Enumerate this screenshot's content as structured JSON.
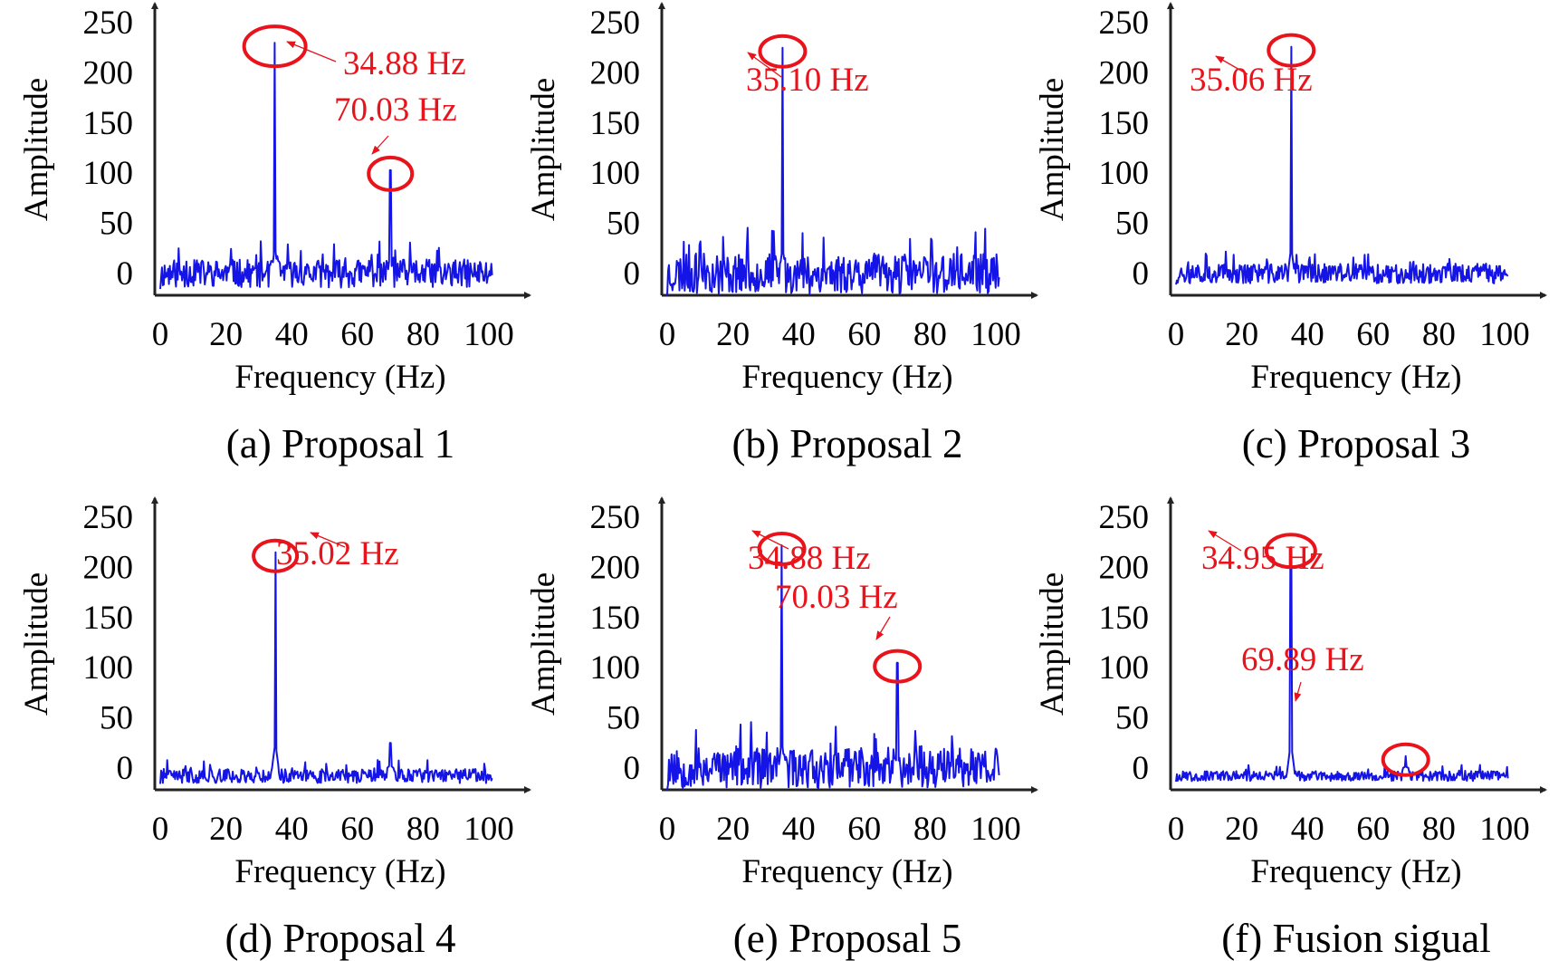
{
  "chart_data": [
    {
      "type": "line",
      "panel": "a",
      "caption": "(a) Proposal 1",
      "xlabel": "Frequency (Hz)",
      "ylabel": "Amplitude",
      "xlim": [
        0,
        100
      ],
      "ylim": [
        0,
        250
      ],
      "xticks": [
        "0",
        "20",
        "40",
        "60",
        "80",
        "100"
      ],
      "yticks": [
        "250",
        "200",
        "150",
        "100",
        "50",
        "0"
      ],
      "noise": {
        "baseline": 0,
        "amplitude": 14,
        "seed": 11
      },
      "peaks": [
        {
          "freq": 34.88,
          "amplitude": 230,
          "label": "34.88 Hz"
        },
        {
          "freq": 70.03,
          "amplitude": 103,
          "label": "70.03 Hz"
        }
      ]
    },
    {
      "type": "line",
      "panel": "b",
      "caption": "(b) Proposal 2",
      "xlabel": "Frequency (Hz)",
      "ylabel": "Amplitude",
      "xlim": [
        0,
        100
      ],
      "ylim": [
        0,
        250
      ],
      "xticks": [
        "0",
        "20",
        "40",
        "60",
        "80",
        "100"
      ],
      "yticks": [
        "250",
        "200",
        "150",
        "100",
        "50",
        "0"
      ],
      "noise": {
        "baseline": 0,
        "amplitude": 20,
        "seed": 23
      },
      "peaks": [
        {
          "freq": 35.1,
          "amplitude": 225,
          "label": "35.10 Hz"
        }
      ]
    },
    {
      "type": "line",
      "panel": "c",
      "caption": "(c) Proposal 3",
      "xlabel": "Frequency (Hz)",
      "ylabel": "Amplitude",
      "xlim": [
        0,
        100
      ],
      "ylim": [
        0,
        250
      ],
      "xticks": [
        "0",
        "20",
        "40",
        "60",
        "80",
        "100"
      ],
      "yticks": [
        "250",
        "200",
        "150",
        "100",
        "50",
        "0"
      ],
      "noise": {
        "baseline": 0,
        "amplitude": 10,
        "seed": 37
      },
      "peaks": [
        {
          "freq": 35.06,
          "amplitude": 226,
          "label": "35.06 Hz"
        }
      ]
    },
    {
      "type": "line",
      "panel": "d",
      "caption": "(d) Proposal 4",
      "xlabel": "Frequency (Hz)",
      "ylabel": "Amplitude",
      "xlim": [
        0,
        100
      ],
      "ylim": [
        0,
        250
      ],
      "xticks": [
        "0",
        "20",
        "40",
        "60",
        "80",
        "100"
      ],
      "yticks": [
        "250",
        "200",
        "150",
        "100",
        "50",
        "0"
      ],
      "noise": {
        "baseline": -8,
        "amplitude": 7,
        "seed": 41
      },
      "peaks": [
        {
          "freq": 35.02,
          "amplitude": 215,
          "label": "35.02 Hz"
        },
        {
          "freq": 70.0,
          "amplitude": 25,
          "label": ""
        }
      ]
    },
    {
      "type": "line",
      "panel": "e",
      "caption": "(e) Proposal 5",
      "xlabel": "Frequency (Hz)",
      "ylabel": "Amplitude",
      "xlim": [
        0,
        100
      ],
      "ylim": [
        0,
        250
      ],
      "xticks": [
        "0",
        "20",
        "40",
        "60",
        "80",
        "100"
      ],
      "yticks": [
        "250",
        "200",
        "150",
        "100",
        "50",
        "0"
      ],
      "noise": {
        "baseline": 0,
        "amplitude": 20,
        "seed": 53
      },
      "peaks": [
        {
          "freq": 34.88,
          "amplitude": 222,
          "label": "34.88 Hz"
        },
        {
          "freq": 70.03,
          "amplitude": 105,
          "label": "70.03 Hz"
        }
      ]
    },
    {
      "type": "line",
      "panel": "f",
      "caption": "(f) Fusion sigual",
      "xlabel": "Frequency (Hz)",
      "ylabel": "Amplitude",
      "xlim": [
        0,
        100
      ],
      "ylim": [
        0,
        250
      ],
      "xticks": [
        "0",
        "20",
        "40",
        "60",
        "80",
        "100"
      ],
      "yticks": [
        "250",
        "200",
        "150",
        "100",
        "50",
        "0"
      ],
      "noise": {
        "baseline": -8,
        "amplitude": 5,
        "seed": 67
      },
      "peaks": [
        {
          "freq": 34.95,
          "amplitude": 220,
          "label": "34.95 Hz"
        },
        {
          "freq": 69.89,
          "amplitude": 12,
          "label": "69.89 Hz"
        }
      ]
    }
  ],
  "colors": {
    "signal": "#1414e6",
    "annotation": "#e8131b",
    "axis": "#222222"
  }
}
